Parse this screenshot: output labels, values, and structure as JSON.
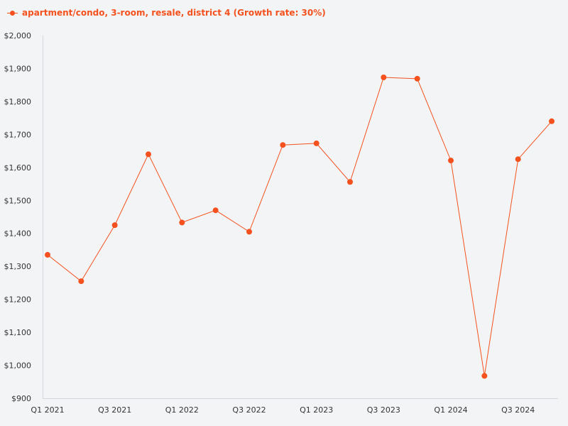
{
  "chart_data": {
    "type": "line",
    "series": [
      {
        "name": "apartment/condo, 3-room, resale, district 4 (Growth rate: 30%)",
        "color": "#f4511e",
        "values": [
          1335,
          1255,
          1425,
          1640,
          1433,
          1470,
          1405,
          1668,
          1673,
          1556,
          1873,
          1869,
          1621,
          968,
          1625,
          1740
        ]
      }
    ],
    "x": [
      "Q1 2021",
      "Q2 2021",
      "Q3 2021",
      "Q4 2021",
      "Q1 2022",
      "Q2 2022",
      "Q3 2022",
      "Q4 2022",
      "Q1 2023",
      "Q2 2023",
      "Q3 2023",
      "Q4 2023",
      "Q1 2024",
      "Q2 2024",
      "Q3 2024",
      "Q4 2024"
    ],
    "x_tick_labels": [
      "Q1 2021",
      "Q3 2021",
      "Q1 2022",
      "Q3 2022",
      "Q1 2023",
      "Q3 2023",
      "Q1 2024",
      "Q3 2024"
    ],
    "y_tick_labels": [
      "$900",
      "$1,000",
      "$1,100",
      "$1,200",
      "$1,300",
      "$1,400",
      "$1,500",
      "$1,600",
      "$1,700",
      "$1,800",
      "$1,900",
      "$2,000"
    ],
    "ylim": [
      900,
      2000
    ],
    "y_tick_step": 100,
    "grid": false,
    "legend_position": "top-left",
    "title": "",
    "xlabel": "",
    "ylabel": ""
  }
}
